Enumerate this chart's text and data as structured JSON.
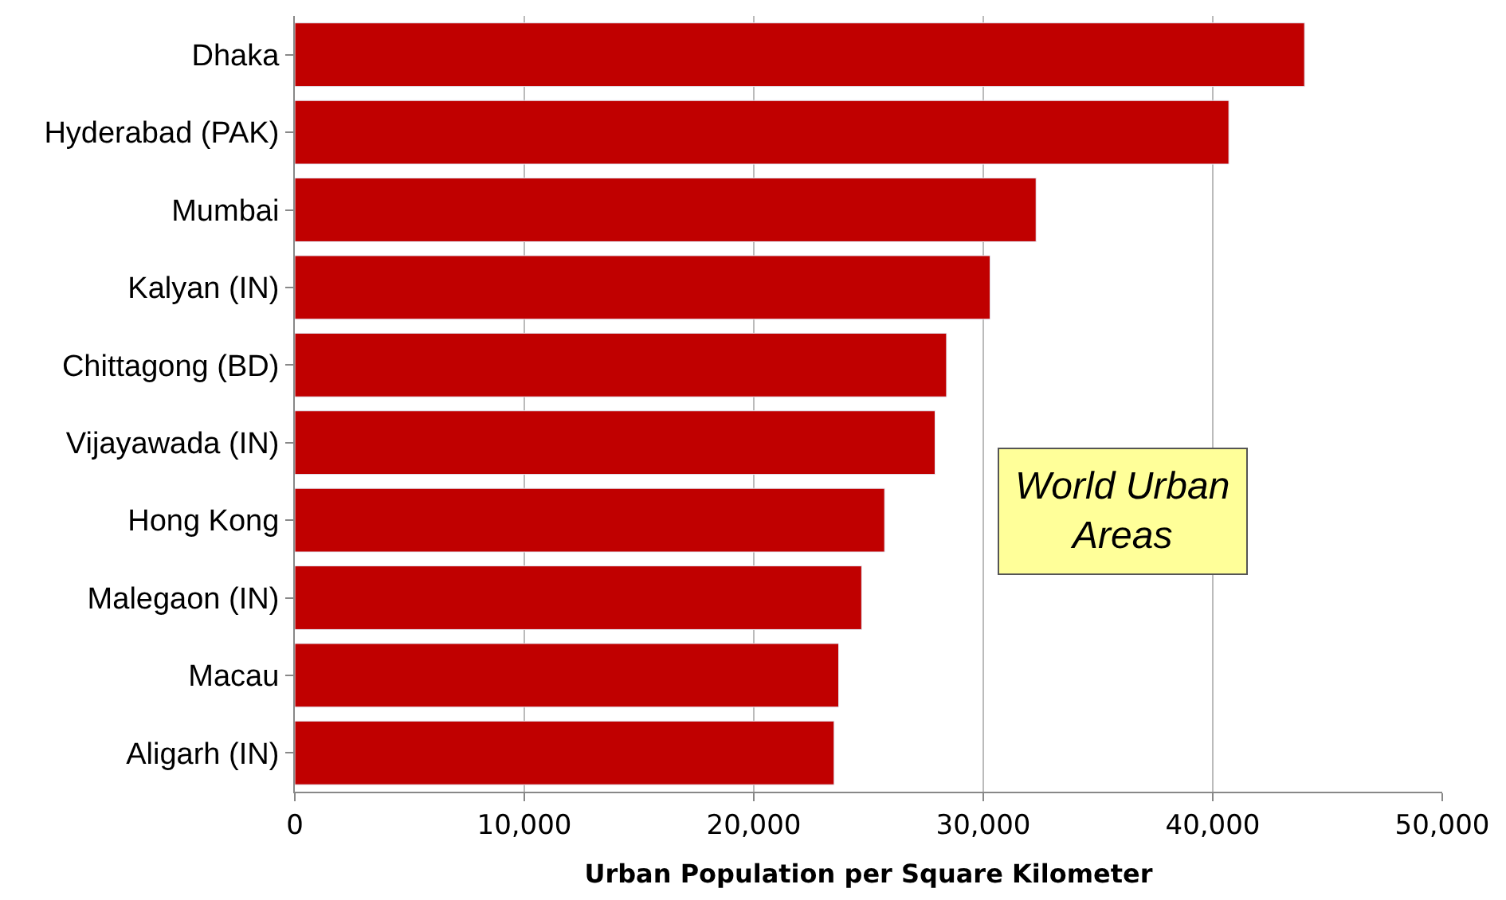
{
  "chart_data": {
    "type": "bar",
    "orientation": "horizontal",
    "xlabel": "Urban Population per Square Kilometer",
    "categories": [
      "Dhaka",
      "Hyderabad (PAK)",
      "Mumbai",
      "Kalyan (IN)",
      "Chittagong (BD)",
      "Vijayawada (IN)",
      "Hong Kong",
      "Malegaon (IN)",
      "Macau",
      "Aligarh (IN)"
    ],
    "values": [
      44000,
      40700,
      32300,
      30300,
      28400,
      27900,
      25700,
      24700,
      23700,
      23500
    ],
    "color": "#c00000",
    "xlim": [
      0,
      50000
    ],
    "xticks": [
      {
        "value": 0,
        "label": "0"
      },
      {
        "value": 10000,
        "label": "10,000"
      },
      {
        "value": 20000,
        "label": "20,000"
      },
      {
        "value": 30000,
        "label": "30,000"
      },
      {
        "value": 40000,
        "label": "40,000"
      },
      {
        "value": 50000,
        "label": "50,000"
      }
    ],
    "grid": "x",
    "annotations": [
      "World Urban\nAreas"
    ]
  }
}
